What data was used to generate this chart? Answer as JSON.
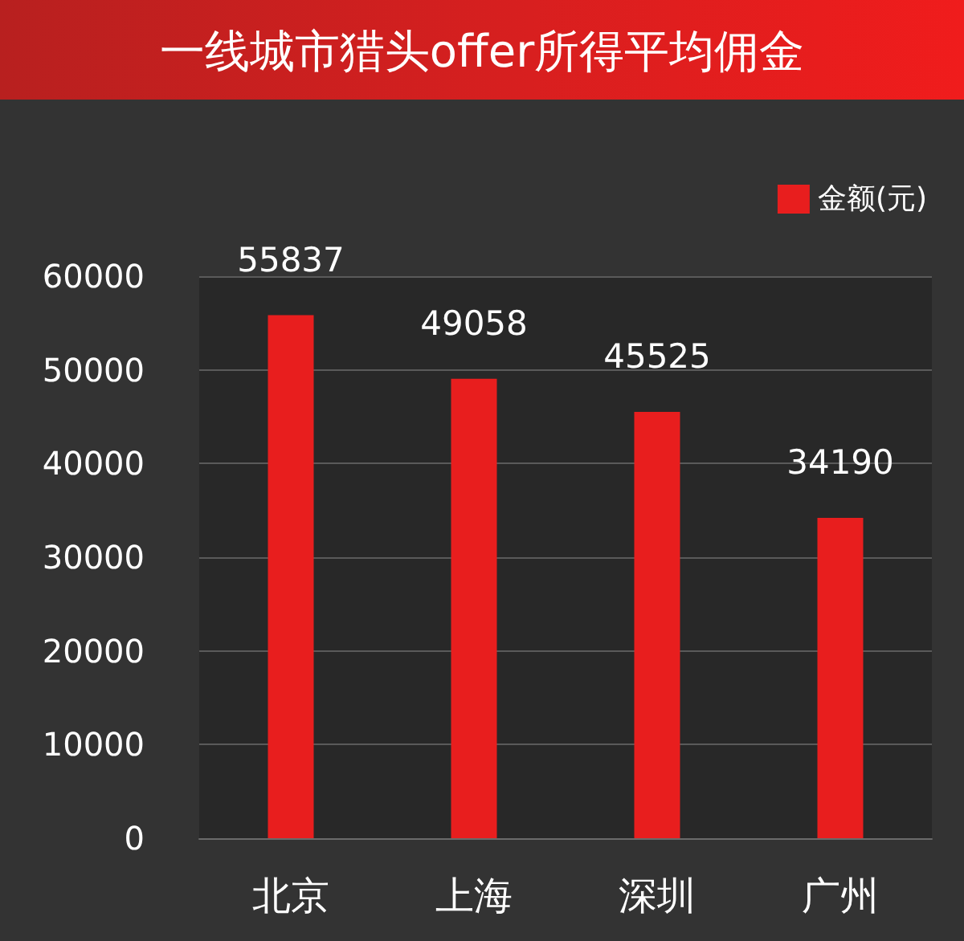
{
  "chart_data": {
    "type": "bar",
    "title": "一线城市猎头offer所得平均佣金",
    "categories": [
      "北京",
      "上海",
      "深圳",
      "广州"
    ],
    "series": [
      {
        "name": "金额(元)",
        "color": "#e81e1e",
        "values": [
          55837,
          49058,
          45525,
          34190
        ]
      }
    ],
    "ylim": [
      0,
      60000
    ],
    "yticks": [
      0,
      10000,
      20000,
      30000,
      40000,
      50000,
      60000
    ],
    "grid": "y",
    "legend": "top right",
    "data_labels": true
  }
}
